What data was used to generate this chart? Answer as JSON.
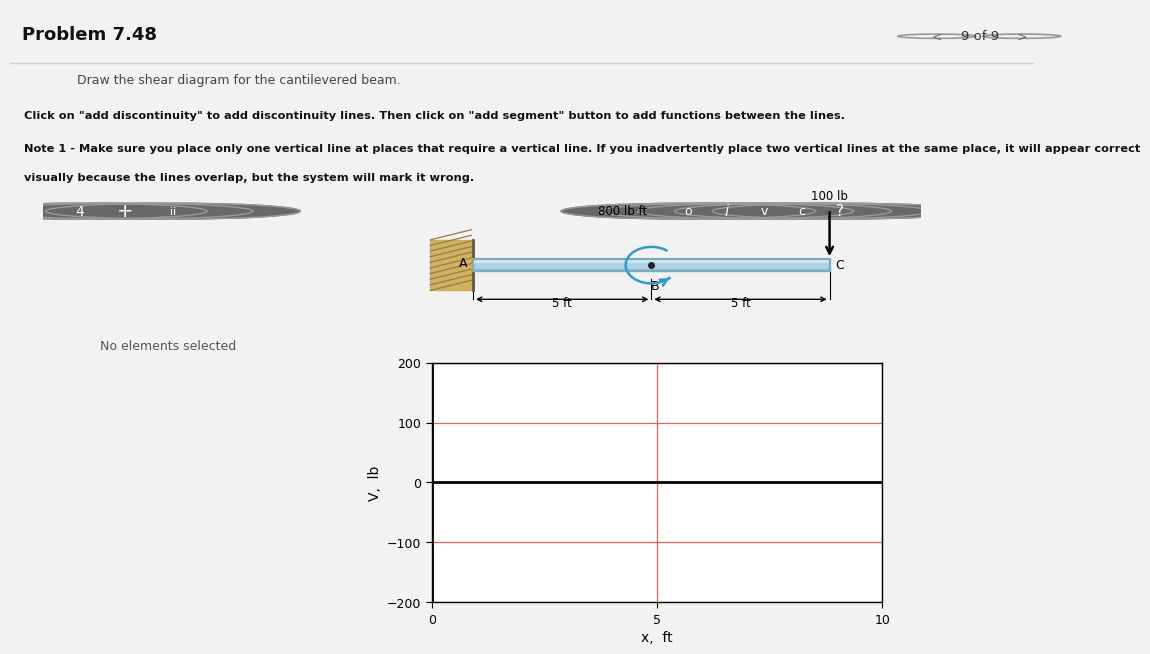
{
  "title": "Problem 7.48",
  "nav_text": "9 of 9",
  "instr1": "Draw the shear diagram for the cantilevered beam.",
  "instr2": "Click on \"add discontinuity\" to add discontinuity lines. Then click on \"add segment\" button to add functions between the lines.",
  "instr3": "Note 1 - Make sure you place only one vertical line at places that require a vertical line. If you inadvertently place two vertical lines at the same place, it will appear correct",
  "instr4": "visually because the lines overlap, but the system will mark it wrong.",
  "no_elements_text": "No elements selected",
  "moment_label": "800 lb·ft",
  "force_label": "100 lb",
  "point_a": "A",
  "point_b": "B",
  "point_c": "C",
  "dim1": "5 ft",
  "dim2": "5 ft",
  "ylabel": "V,  lb",
  "xlabel": "x,  ft",
  "ylim": [
    -200,
    200
  ],
  "xlim": [
    0,
    10
  ],
  "yticks": [
    -200,
    -100,
    0,
    100,
    200
  ],
  "xticks": [
    0,
    5,
    10
  ],
  "grid_color": "#e06060",
  "outer_bg": "#f2f2f2",
  "toolbar_bg": "#555555",
  "left_panel_bg": "#cccccc",
  "beam_color": "#a8d0e0",
  "beam_edge": "#7aaabb",
  "wall_color": "#c8a060",
  "moment_arc_color": "#3399cc"
}
